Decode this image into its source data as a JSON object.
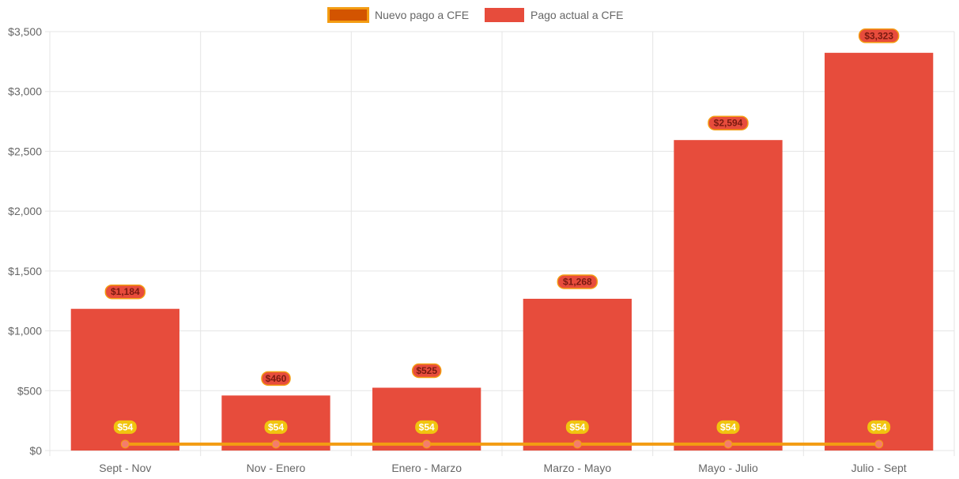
{
  "colors": {
    "bar_fill": "#e74c3c",
    "line_color": "#f39c12",
    "line_legend_fill": "#d35400",
    "grid": "#e5e5e5",
    "axis_text": "#666666",
    "bar_label_bg": "#e74c3c",
    "bar_label_border": "#f39c12",
    "line_label_bg": "#f1c40f",
    "point_fill": "#f57c6c"
  },
  "chart_data": {
    "type": "bar",
    "categories": [
      "Sept - Nov",
      "Nov - Enero",
      "Enero - Marzo",
      "Marzo - Mayo",
      "Mayo - Julio",
      "Julio - Sept"
    ],
    "series": [
      {
        "name": "Pago actual a CFE",
        "type": "bar",
        "values": [
          1184,
          460,
          525,
          1268,
          2594,
          3323
        ],
        "labels": [
          "$1,184",
          "$460",
          "$525",
          "$1,268",
          "$2,594",
          "$3,323"
        ]
      },
      {
        "name": "Nuevo pago a CFE",
        "type": "line",
        "values": [
          54,
          54,
          54,
          54,
          54,
          54
        ],
        "labels": [
          "$54",
          "$54",
          "$54",
          "$54",
          "$54",
          "$54"
        ]
      }
    ],
    "ylim": [
      0,
      3500
    ],
    "yticks": [
      0,
      500,
      1000,
      1500,
      2000,
      2500,
      3000,
      3500
    ],
    "ytick_labels": [
      "$0",
      "$500",
      "$1,000",
      "$1,500",
      "$2,000",
      "$2,500",
      "$3,000",
      "$3,500"
    ],
    "legend": {
      "position": "top-center",
      "entries": [
        "Nuevo pago a CFE",
        "Pago actual a CFE"
      ]
    },
    "grid": true,
    "title": "",
    "xlabel": "",
    "ylabel": ""
  }
}
